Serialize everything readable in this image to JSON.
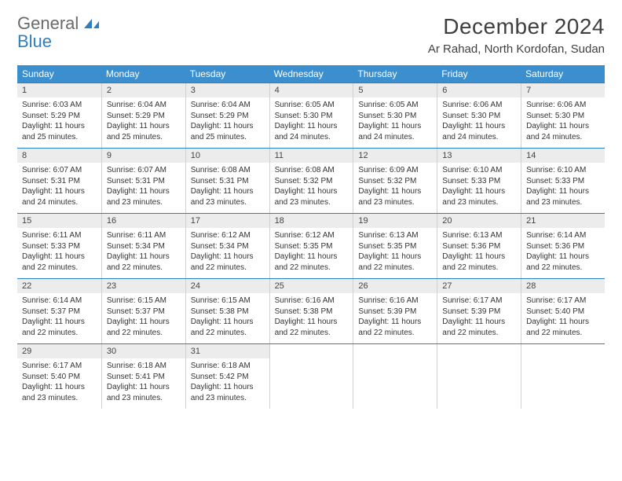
{
  "brand": {
    "line1": "General",
    "line2": "Blue"
  },
  "title": {
    "month": "December 2024",
    "location": "Ar Rahad, North Kordofan, Sudan"
  },
  "colors": {
    "header_bg": "#3b8fcf",
    "header_text": "#ffffff",
    "accent_border": "#2f7fbf",
    "daynum_bg": "#ececec",
    "text": "#333333"
  },
  "days_of_week": [
    "Sunday",
    "Monday",
    "Tuesday",
    "Wednesday",
    "Thursday",
    "Friday",
    "Saturday"
  ],
  "weeks": [
    [
      {
        "n": "1",
        "sr": "Sunrise: 6:03 AM",
        "ss": "Sunset: 5:29 PM",
        "d1": "Daylight: 11 hours",
        "d2": "and 25 minutes."
      },
      {
        "n": "2",
        "sr": "Sunrise: 6:04 AM",
        "ss": "Sunset: 5:29 PM",
        "d1": "Daylight: 11 hours",
        "d2": "and 25 minutes."
      },
      {
        "n": "3",
        "sr": "Sunrise: 6:04 AM",
        "ss": "Sunset: 5:29 PM",
        "d1": "Daylight: 11 hours",
        "d2": "and 25 minutes."
      },
      {
        "n": "4",
        "sr": "Sunrise: 6:05 AM",
        "ss": "Sunset: 5:30 PM",
        "d1": "Daylight: 11 hours",
        "d2": "and 24 minutes."
      },
      {
        "n": "5",
        "sr": "Sunrise: 6:05 AM",
        "ss": "Sunset: 5:30 PM",
        "d1": "Daylight: 11 hours",
        "d2": "and 24 minutes."
      },
      {
        "n": "6",
        "sr": "Sunrise: 6:06 AM",
        "ss": "Sunset: 5:30 PM",
        "d1": "Daylight: 11 hours",
        "d2": "and 24 minutes."
      },
      {
        "n": "7",
        "sr": "Sunrise: 6:06 AM",
        "ss": "Sunset: 5:30 PM",
        "d1": "Daylight: 11 hours",
        "d2": "and 24 minutes."
      }
    ],
    [
      {
        "n": "8",
        "sr": "Sunrise: 6:07 AM",
        "ss": "Sunset: 5:31 PM",
        "d1": "Daylight: 11 hours",
        "d2": "and 24 minutes."
      },
      {
        "n": "9",
        "sr": "Sunrise: 6:07 AM",
        "ss": "Sunset: 5:31 PM",
        "d1": "Daylight: 11 hours",
        "d2": "and 23 minutes."
      },
      {
        "n": "10",
        "sr": "Sunrise: 6:08 AM",
        "ss": "Sunset: 5:31 PM",
        "d1": "Daylight: 11 hours",
        "d2": "and 23 minutes."
      },
      {
        "n": "11",
        "sr": "Sunrise: 6:08 AM",
        "ss": "Sunset: 5:32 PM",
        "d1": "Daylight: 11 hours",
        "d2": "and 23 minutes."
      },
      {
        "n": "12",
        "sr": "Sunrise: 6:09 AM",
        "ss": "Sunset: 5:32 PM",
        "d1": "Daylight: 11 hours",
        "d2": "and 23 minutes."
      },
      {
        "n": "13",
        "sr": "Sunrise: 6:10 AM",
        "ss": "Sunset: 5:33 PM",
        "d1": "Daylight: 11 hours",
        "d2": "and 23 minutes."
      },
      {
        "n": "14",
        "sr": "Sunrise: 6:10 AM",
        "ss": "Sunset: 5:33 PM",
        "d1": "Daylight: 11 hours",
        "d2": "and 23 minutes."
      }
    ],
    [
      {
        "n": "15",
        "sr": "Sunrise: 6:11 AM",
        "ss": "Sunset: 5:33 PM",
        "d1": "Daylight: 11 hours",
        "d2": "and 22 minutes."
      },
      {
        "n": "16",
        "sr": "Sunrise: 6:11 AM",
        "ss": "Sunset: 5:34 PM",
        "d1": "Daylight: 11 hours",
        "d2": "and 22 minutes."
      },
      {
        "n": "17",
        "sr": "Sunrise: 6:12 AM",
        "ss": "Sunset: 5:34 PM",
        "d1": "Daylight: 11 hours",
        "d2": "and 22 minutes."
      },
      {
        "n": "18",
        "sr": "Sunrise: 6:12 AM",
        "ss": "Sunset: 5:35 PM",
        "d1": "Daylight: 11 hours",
        "d2": "and 22 minutes."
      },
      {
        "n": "19",
        "sr": "Sunrise: 6:13 AM",
        "ss": "Sunset: 5:35 PM",
        "d1": "Daylight: 11 hours",
        "d2": "and 22 minutes."
      },
      {
        "n": "20",
        "sr": "Sunrise: 6:13 AM",
        "ss": "Sunset: 5:36 PM",
        "d1": "Daylight: 11 hours",
        "d2": "and 22 minutes."
      },
      {
        "n": "21",
        "sr": "Sunrise: 6:14 AM",
        "ss": "Sunset: 5:36 PM",
        "d1": "Daylight: 11 hours",
        "d2": "and 22 minutes."
      }
    ],
    [
      {
        "n": "22",
        "sr": "Sunrise: 6:14 AM",
        "ss": "Sunset: 5:37 PM",
        "d1": "Daylight: 11 hours",
        "d2": "and 22 minutes."
      },
      {
        "n": "23",
        "sr": "Sunrise: 6:15 AM",
        "ss": "Sunset: 5:37 PM",
        "d1": "Daylight: 11 hours",
        "d2": "and 22 minutes."
      },
      {
        "n": "24",
        "sr": "Sunrise: 6:15 AM",
        "ss": "Sunset: 5:38 PM",
        "d1": "Daylight: 11 hours",
        "d2": "and 22 minutes."
      },
      {
        "n": "25",
        "sr": "Sunrise: 6:16 AM",
        "ss": "Sunset: 5:38 PM",
        "d1": "Daylight: 11 hours",
        "d2": "and 22 minutes."
      },
      {
        "n": "26",
        "sr": "Sunrise: 6:16 AM",
        "ss": "Sunset: 5:39 PM",
        "d1": "Daylight: 11 hours",
        "d2": "and 22 minutes."
      },
      {
        "n": "27",
        "sr": "Sunrise: 6:17 AM",
        "ss": "Sunset: 5:39 PM",
        "d1": "Daylight: 11 hours",
        "d2": "and 22 minutes."
      },
      {
        "n": "28",
        "sr": "Sunrise: 6:17 AM",
        "ss": "Sunset: 5:40 PM",
        "d1": "Daylight: 11 hours",
        "d2": "and 22 minutes."
      }
    ],
    [
      {
        "n": "29",
        "sr": "Sunrise: 6:17 AM",
        "ss": "Sunset: 5:40 PM",
        "d1": "Daylight: 11 hours",
        "d2": "and 23 minutes."
      },
      {
        "n": "30",
        "sr": "Sunrise: 6:18 AM",
        "ss": "Sunset: 5:41 PM",
        "d1": "Daylight: 11 hours",
        "d2": "and 23 minutes."
      },
      {
        "n": "31",
        "sr": "Sunrise: 6:18 AM",
        "ss": "Sunset: 5:42 PM",
        "d1": "Daylight: 11 hours",
        "d2": "and 23 minutes."
      },
      null,
      null,
      null,
      null
    ]
  ]
}
